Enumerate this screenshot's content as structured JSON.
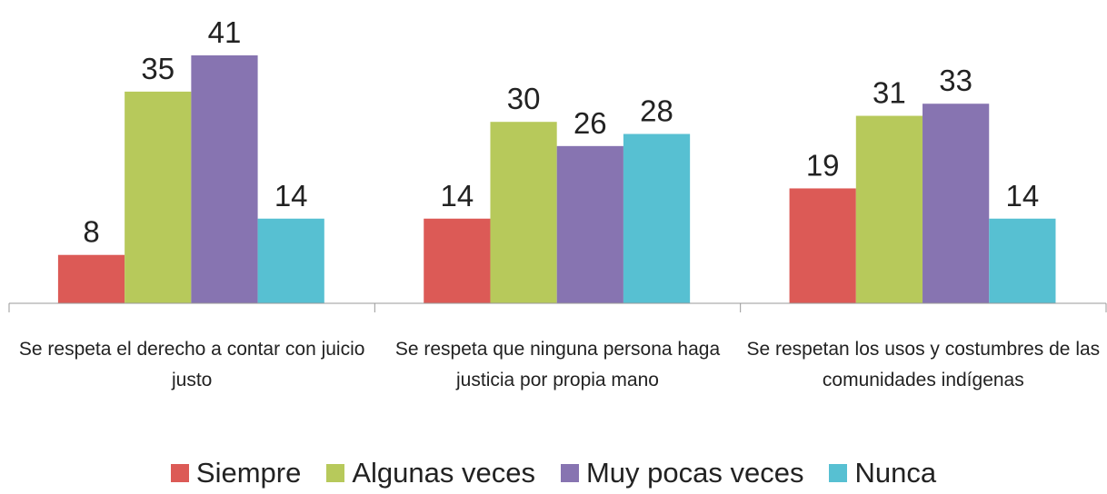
{
  "chart_data": {
    "type": "bar",
    "categories": [
      "Se respeta el derecho a contar con juicio justo",
      "Se respeta que ninguna persona haga justicia por propia mano",
      "Se respetan los usos y costumbres de las comunidades indígenas"
    ],
    "series": [
      {
        "name": "Siempre",
        "color": "#dc5a56",
        "values": [
          8,
          14,
          19
        ]
      },
      {
        "name": "Algunas veces",
        "color": "#b7c95b",
        "values": [
          35,
          30,
          31
        ]
      },
      {
        "name": "Muy pocas veces",
        "color": "#8774b1",
        "values": [
          41,
          26,
          33
        ]
      },
      {
        "name": "Nunca",
        "color": "#57c0d2",
        "values": [
          14,
          28,
          14
        ]
      }
    ],
    "ylim": [
      0,
      50
    ],
    "legend": "bottom"
  }
}
